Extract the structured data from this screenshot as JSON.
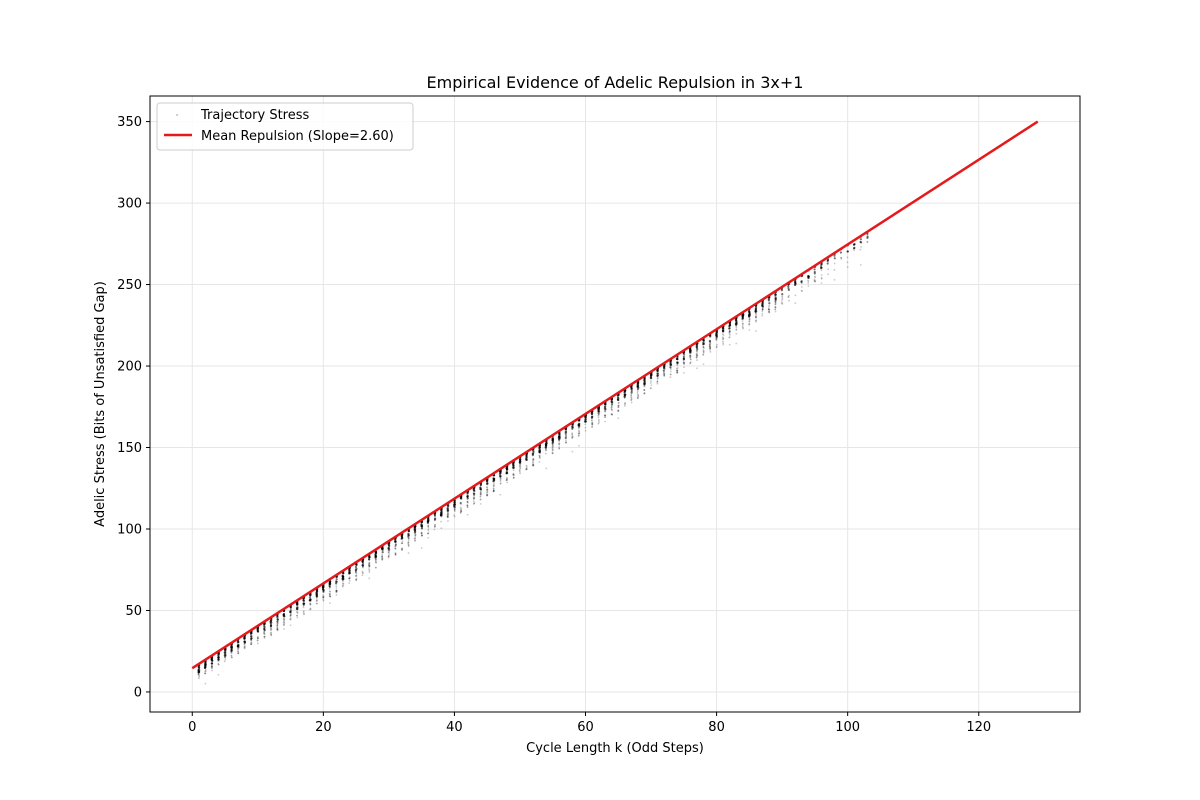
{
  "chart_data": {
    "type": "scatter",
    "title": "Empirical Evidence of Adelic Repulsion in 3x+1",
    "xlabel": "Cycle Length k (Odd Steps)",
    "ylabel": "Adelic Stress (Bits of Unsatisfied Gap)",
    "xlim": [
      -6.45,
      135.45
    ],
    "ylim": [
      -12.3,
      365.7
    ],
    "xticks": [
      0,
      20,
      40,
      60,
      80,
      100,
      120
    ],
    "yticks": [
      0,
      50,
      100,
      150,
      200,
      250,
      300,
      350
    ],
    "grid": true,
    "legend_position": "top-left",
    "scatter_x_range": [
      1,
      103
    ],
    "series": [
      {
        "name": "Trajectory Stress",
        "kind": "scatter",
        "color": "#000000",
        "description_values": "per k, points clustered from roughly fit line down to ~10 below",
        "max_y_approx": "2.60*k + 15"
      },
      {
        "name": "Mean Repulsion (Slope=2.60)",
        "kind": "line",
        "color": "#e41a1c",
        "slope": 2.6,
        "intercept": 14.6,
        "x": [
          0,
          129
        ],
        "y": [
          14.6,
          350
        ]
      }
    ]
  }
}
